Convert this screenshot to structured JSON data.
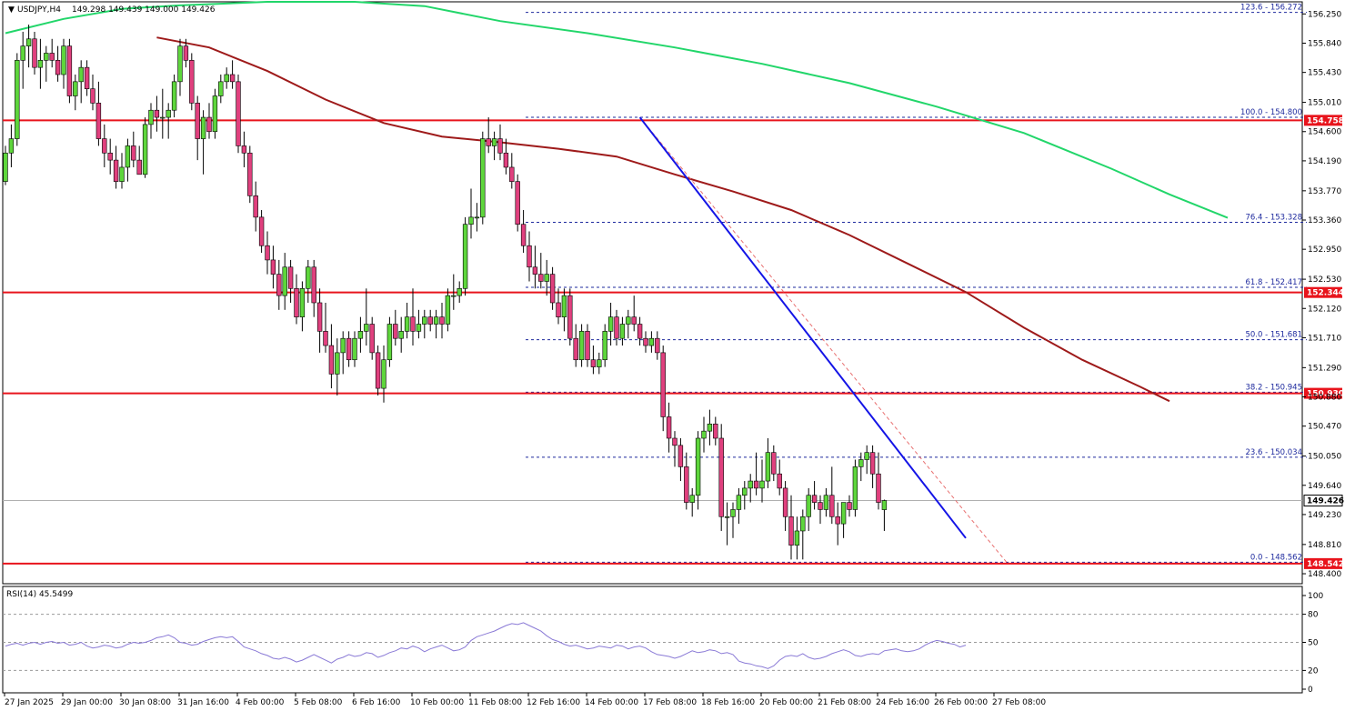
{
  "chart_data": {
    "type": "candlestick",
    "instrument_label": "USDJPY,H4",
    "ohlc_label": "149.298 149.439 149.000 149.426",
    "price_ticks": [
      "156.250",
      "155.840",
      "155.430",
      "155.010",
      "154.600",
      "154.190",
      "153.770",
      "153.360",
      "152.950",
      "152.530",
      "152.120",
      "151.710",
      "151.290",
      "150.880",
      "150.470",
      "150.050",
      "149.640",
      "149.230",
      "148.810",
      "148.400"
    ],
    "ylim": [
      148.26,
      156.42
    ],
    "x_labels": [
      "27 Jan 2025",
      "29 Jan 00:00",
      "30 Jan 08:00",
      "31 Jan 16:00",
      "4 Feb 00:00",
      "5 Feb 08:00",
      "6 Feb 16:00",
      "10 Feb 00:00",
      "11 Feb 08:00",
      "12 Feb 16:00",
      "14 Feb 00:00",
      "17 Feb 08:00",
      "18 Feb 16:00",
      "20 Feb 00:00",
      "21 Feb 08:00",
      "24 Feb 16:00",
      "26 Feb 00:00",
      "27 Feb 08:00"
    ],
    "horizontal_levels": [
      {
        "price": 154.758,
        "label": "154.758",
        "color": "#e8141c"
      },
      {
        "price": 152.344,
        "label": "152.344",
        "color": "#e8141c"
      },
      {
        "price": 150.93,
        "label": "150.930",
        "color": "#e8141c"
      },
      {
        "price": 148.542,
        "label": "148.542",
        "color": "#e8141c"
      }
    ],
    "fibonacci": [
      {
        "level": "123.6",
        "price": 156.272,
        "label": "123.6 - 156.272"
      },
      {
        "level": "100.0",
        "price": 154.8,
        "label": "100.0 - 154.800"
      },
      {
        "level": "76.4",
        "price": 153.328,
        "label": "76.4 - 153.328"
      },
      {
        "level": "61.8",
        "price": 152.417,
        "label": "61.8 - 152.417"
      },
      {
        "level": "50.0",
        "price": 151.681,
        "label": "50.0 - 151.681"
      },
      {
        "level": "38.2",
        "price": 150.945,
        "label": "38.2 - 150.945"
      },
      {
        "level": "23.6",
        "price": 150.034,
        "label": "23.6 - 150.034"
      },
      {
        "level": "0.0",
        "price": 148.562,
        "label": "0.0 - 148.562"
      }
    ],
    "current_price": {
      "price": 149.426,
      "label": "149.426"
    },
    "trendline": {
      "start_bar": 109,
      "start_price": 154.8,
      "end_bar": 165,
      "end_price": 148.9,
      "color": "#1414e6"
    },
    "fib_diagonal": {
      "start_bar": 109,
      "start_price": 154.8,
      "end_bar": 172,
      "end_price": 148.562,
      "color": "#e87070"
    },
    "sma_fast": {
      "color": "#9e1a1a",
      "points": [
        [
          26,
          155.92
        ],
        [
          35,
          155.78
        ],
        [
          45,
          155.45
        ],
        [
          55,
          155.05
        ],
        [
          65,
          154.72
        ],
        [
          75,
          154.53
        ],
        [
          85,
          154.45
        ],
        [
          95,
          154.36
        ],
        [
          105,
          154.25
        ],
        [
          115,
          154.0
        ],
        [
          125,
          153.76
        ],
        [
          135,
          153.5
        ],
        [
          145,
          153.15
        ],
        [
          155,
          152.75
        ],
        [
          165,
          152.35
        ],
        [
          175,
          151.85
        ],
        [
          185,
          151.4
        ],
        [
          195,
          151.02
        ],
        [
          200,
          150.82
        ]
      ]
    },
    "sma_slow": {
      "color": "#22d66a",
      "points": [
        [
          0,
          155.98
        ],
        [
          10,
          156.18
        ],
        [
          20,
          156.32
        ],
        [
          30,
          156.37
        ],
        [
          45,
          156.42
        ],
        [
          60,
          156.42
        ],
        [
          72,
          156.36
        ],
        [
          85,
          156.15
        ],
        [
          100,
          155.98
        ],
        [
          115,
          155.78
        ],
        [
          130,
          155.55
        ],
        [
          145,
          155.28
        ],
        [
          160,
          154.95
        ],
        [
          175,
          154.58
        ],
        [
          190,
          154.08
        ],
        [
          200,
          153.72
        ],
        [
          210,
          153.39
        ]
      ]
    },
    "candles": [
      [
        153.9,
        154.4,
        153.85,
        154.3
      ],
      [
        154.3,
        154.7,
        154.1,
        154.5
      ],
      [
        154.5,
        155.7,
        154.4,
        155.6
      ],
      [
        155.6,
        156.0,
        155.2,
        155.8
      ],
      [
        155.8,
        156.1,
        155.5,
        155.9
      ],
      [
        155.9,
        156.0,
        155.4,
        155.5
      ],
      [
        155.5,
        155.9,
        155.2,
        155.6
      ],
      [
        155.6,
        155.8,
        155.3,
        155.7
      ],
      [
        155.7,
        155.9,
        155.5,
        155.6
      ],
      [
        155.6,
        155.8,
        155.3,
        155.4
      ],
      [
        155.4,
        155.9,
        155.2,
        155.8
      ],
      [
        155.8,
        155.9,
        155.0,
        155.1
      ],
      [
        155.1,
        155.4,
        154.9,
        155.3
      ],
      [
        155.3,
        155.6,
        155.0,
        155.5
      ],
      [
        155.5,
        155.6,
        155.1,
        155.2
      ],
      [
        155.2,
        155.4,
        154.9,
        155.0
      ],
      [
        155.0,
        155.3,
        154.4,
        154.5
      ],
      [
        154.5,
        154.7,
        154.1,
        154.3
      ],
      [
        154.3,
        154.5,
        154.0,
        154.2
      ],
      [
        154.2,
        154.4,
        153.8,
        153.9
      ],
      [
        153.9,
        154.3,
        153.8,
        154.1
      ],
      [
        154.1,
        154.5,
        153.9,
        154.4
      ],
      [
        154.4,
        154.6,
        154.1,
        154.2
      ],
      [
        154.2,
        154.4,
        154.0,
        154.0
      ],
      [
        154.0,
        154.8,
        153.95,
        154.7
      ],
      [
        154.7,
        155.0,
        154.5,
        154.9
      ],
      [
        154.9,
        155.1,
        154.6,
        154.8
      ],
      [
        154.8,
        155.2,
        154.5,
        154.8
      ],
      [
        154.8,
        155.0,
        154.5,
        154.9
      ],
      [
        154.9,
        155.4,
        154.8,
        155.3
      ],
      [
        155.3,
        155.9,
        155.1,
        155.8
      ],
      [
        155.8,
        155.9,
        155.5,
        155.6
      ],
      [
        155.6,
        155.7,
        154.9,
        155.0
      ],
      [
        155.0,
        155.1,
        154.2,
        154.5
      ],
      [
        154.5,
        154.9,
        154.0,
        154.8
      ],
      [
        154.8,
        155.0,
        154.5,
        154.6
      ],
      [
        154.6,
        155.2,
        154.5,
        155.1
      ],
      [
        155.1,
        155.4,
        155.0,
        155.3
      ],
      [
        155.3,
        155.5,
        155.2,
        155.4
      ],
      [
        155.4,
        155.6,
        155.2,
        155.3
      ],
      [
        155.3,
        155.4,
        154.3,
        154.4
      ],
      [
        154.4,
        154.6,
        154.1,
        154.3
      ],
      [
        154.3,
        154.4,
        153.6,
        153.7
      ],
      [
        153.7,
        153.9,
        153.2,
        153.4
      ],
      [
        153.4,
        153.5,
        152.9,
        153.0
      ],
      [
        153.0,
        153.2,
        152.6,
        152.8
      ],
      [
        152.8,
        153.0,
        152.4,
        152.6
      ],
      [
        152.6,
        152.8,
        152.1,
        152.3
      ],
      [
        152.3,
        152.9,
        152.1,
        152.7
      ],
      [
        152.7,
        152.8,
        152.2,
        152.4
      ],
      [
        152.4,
        152.6,
        151.9,
        152.0
      ],
      [
        152.0,
        152.5,
        151.8,
        152.4
      ],
      [
        152.4,
        152.8,
        152.2,
        152.7
      ],
      [
        152.7,
        152.8,
        152.0,
        152.2
      ],
      [
        152.2,
        152.4,
        151.5,
        151.8
      ],
      [
        151.8,
        152.2,
        151.5,
        151.6
      ],
      [
        151.6,
        151.9,
        151.0,
        151.2
      ],
      [
        151.2,
        151.7,
        150.9,
        151.5
      ],
      [
        151.5,
        151.8,
        151.2,
        151.7
      ],
      [
        151.7,
        151.8,
        151.3,
        151.4
      ],
      [
        151.4,
        151.8,
        151.3,
        151.7
      ],
      [
        151.7,
        152.0,
        151.5,
        151.8
      ],
      [
        151.8,
        152.4,
        151.6,
        151.9
      ],
      [
        151.9,
        152.0,
        151.4,
        151.5
      ],
      [
        151.5,
        151.6,
        150.9,
        151.0
      ],
      [
        151.0,
        151.6,
        150.8,
        151.4
      ],
      [
        151.4,
        152.0,
        151.3,
        151.9
      ],
      [
        151.9,
        152.1,
        151.6,
        151.7
      ],
      [
        151.7,
        152.0,
        151.5,
        151.8
      ],
      [
        151.8,
        152.2,
        151.7,
        152.0
      ],
      [
        152.0,
        152.4,
        151.6,
        151.8
      ],
      [
        151.8,
        152.1,
        151.7,
        151.9
      ],
      [
        151.9,
        152.1,
        151.7,
        152.0
      ],
      [
        152.0,
        152.1,
        151.8,
        151.9
      ],
      [
        151.9,
        152.1,
        151.7,
        152.0
      ],
      [
        152.0,
        152.2,
        151.7,
        151.9
      ],
      [
        151.9,
        152.4,
        151.8,
        152.3
      ],
      [
        152.3,
        152.6,
        152.1,
        152.3
      ],
      [
        152.3,
        152.5,
        152.2,
        152.4
      ],
      [
        152.4,
        153.4,
        152.3,
        153.3
      ],
      [
        153.3,
        153.8,
        153.1,
        153.4
      ],
      [
        153.4,
        153.6,
        153.2,
        153.4
      ],
      [
        153.4,
        154.6,
        153.3,
        154.5
      ],
      [
        154.5,
        154.8,
        154.3,
        154.4
      ],
      [
        154.4,
        154.6,
        154.2,
        154.5
      ],
      [
        154.5,
        154.7,
        154.2,
        154.3
      ],
      [
        154.3,
        154.5,
        154.0,
        154.1
      ],
      [
        154.1,
        154.3,
        153.8,
        153.9
      ],
      [
        153.9,
        154.0,
        153.2,
        153.3
      ],
      [
        153.3,
        153.5,
        152.9,
        153.0
      ],
      [
        153.0,
        153.2,
        152.5,
        152.7
      ],
      [
        152.7,
        153.0,
        152.4,
        152.6
      ],
      [
        152.6,
        152.9,
        152.4,
        152.5
      ],
      [
        152.5,
        152.8,
        152.3,
        152.6
      ],
      [
        152.6,
        152.7,
        152.1,
        152.2
      ],
      [
        152.2,
        152.4,
        151.9,
        152.0
      ],
      [
        152.0,
        152.4,
        151.8,
        152.3
      ],
      [
        152.3,
        152.4,
        151.6,
        151.7
      ],
      [
        151.7,
        151.9,
        151.3,
        151.4
      ],
      [
        151.4,
        151.9,
        151.3,
        151.8
      ],
      [
        151.8,
        151.9,
        151.3,
        151.4
      ],
      [
        151.4,
        151.6,
        151.2,
        151.3
      ],
      [
        151.3,
        151.5,
        151.2,
        151.4
      ],
      [
        151.4,
        151.9,
        151.3,
        151.8
      ],
      [
        151.8,
        152.2,
        151.6,
        152.0
      ],
      [
        152.0,
        152.1,
        151.6,
        151.7
      ],
      [
        151.7,
        152.0,
        151.6,
        151.9
      ],
      [
        151.9,
        152.1,
        151.7,
        152.0
      ],
      [
        152.0,
        152.3,
        151.8,
        151.9
      ],
      [
        151.9,
        152.0,
        151.6,
        151.7
      ],
      [
        151.7,
        151.8,
        151.5,
        151.6
      ],
      [
        151.6,
        151.8,
        151.5,
        151.7
      ],
      [
        151.7,
        151.8,
        151.4,
        151.5
      ],
      [
        151.5,
        151.6,
        150.4,
        150.6
      ],
      [
        150.6,
        150.8,
        150.1,
        150.3
      ],
      [
        150.3,
        150.4,
        149.9,
        150.2
      ],
      [
        150.2,
        150.3,
        149.7,
        149.9
      ],
      [
        149.9,
        150.1,
        149.3,
        149.4
      ],
      [
        149.4,
        149.6,
        149.2,
        149.5
      ],
      [
        149.5,
        150.4,
        149.3,
        150.3
      ],
      [
        150.3,
        150.6,
        150.1,
        150.4
      ],
      [
        150.4,
        150.7,
        150.2,
        150.5
      ],
      [
        150.5,
        150.6,
        150.2,
        150.3
      ],
      [
        150.3,
        150.5,
        149.0,
        149.2
      ],
      [
        149.2,
        149.4,
        148.8,
        149.2
      ],
      [
        149.2,
        149.4,
        148.9,
        149.3
      ],
      [
        149.3,
        149.6,
        149.1,
        149.5
      ],
      [
        149.5,
        149.7,
        149.3,
        149.6
      ],
      [
        149.6,
        149.8,
        149.4,
        149.7
      ],
      [
        149.7,
        150.1,
        149.5,
        149.6
      ],
      [
        149.6,
        150.0,
        149.4,
        149.7
      ],
      [
        149.7,
        150.3,
        149.6,
        150.1
      ],
      [
        150.1,
        150.2,
        149.7,
        149.8
      ],
      [
        149.8,
        150.0,
        149.5,
        149.6
      ],
      [
        149.6,
        149.7,
        149.0,
        149.2
      ],
      [
        149.2,
        149.5,
        148.6,
        148.8
      ],
      [
        148.8,
        149.2,
        148.6,
        149.0
      ],
      [
        149.0,
        149.3,
        148.6,
        149.2
      ],
      [
        149.2,
        149.6,
        149.0,
        149.5
      ],
      [
        149.5,
        149.7,
        149.3,
        149.4
      ],
      [
        149.4,
        149.5,
        149.1,
        149.3
      ],
      [
        149.3,
        149.6,
        149.2,
        149.5
      ],
      [
        149.5,
        149.9,
        149.1,
        149.2
      ],
      [
        149.2,
        149.4,
        148.8,
        149.1
      ],
      [
        149.1,
        149.4,
        148.9,
        149.4
      ],
      [
        149.4,
        149.5,
        149.2,
        149.3
      ],
      [
        149.3,
        150.0,
        149.2,
        149.9
      ],
      [
        149.9,
        150.1,
        149.7,
        150.0
      ],
      [
        150.0,
        150.2,
        149.8,
        150.1
      ],
      [
        150.1,
        150.2,
        149.6,
        149.8
      ],
      [
        149.8,
        150.1,
        149.3,
        149.4
      ],
      [
        149.298,
        149.439,
        149.0,
        149.426
      ]
    ],
    "rsi": {
      "label": "RSI(14) 45.5499",
      "levels": [
        80,
        50,
        20
      ],
      "ticks": [
        "100",
        "80",
        "50",
        "20",
        "0"
      ],
      "ylim": [
        0,
        100
      ],
      "values": [
        46,
        48,
        49,
        47,
        49,
        50,
        48,
        50,
        51,
        49,
        50,
        47,
        48,
        50,
        46,
        44,
        45,
        47,
        46,
        44,
        45,
        48,
        50,
        49,
        50,
        52,
        55,
        56,
        58,
        55,
        50,
        49,
        47,
        48,
        51,
        53,
        55,
        56,
        55,
        56,
        51,
        45,
        43,
        41,
        38,
        36,
        33,
        32,
        34,
        32,
        29,
        31,
        34,
        37,
        34,
        31,
        28,
        32,
        34,
        37,
        35,
        36,
        39,
        38,
        34,
        36,
        39,
        41,
        44,
        43,
        46,
        44,
        40,
        43,
        45,
        47,
        44,
        41,
        42,
        45,
        52,
        56,
        58,
        60,
        62,
        65,
        68,
        70,
        69,
        71,
        68,
        65,
        62,
        57,
        53,
        51,
        48,
        46,
        47,
        45,
        43,
        44,
        46,
        45,
        44,
        47,
        46,
        43,
        45,
        46,
        44,
        40,
        37,
        36,
        35,
        33,
        35,
        38,
        41,
        39,
        40,
        42,
        41,
        38,
        39,
        37,
        30,
        28,
        27,
        25,
        24,
        22,
        25,
        31,
        35,
        36,
        35,
        38,
        34,
        32,
        33,
        35,
        38,
        40,
        42,
        40,
        36,
        35,
        37,
        38,
        37,
        41,
        42,
        43,
        41,
        40,
        41,
        43,
        47,
        50,
        52,
        51,
        49,
        48,
        45,
        47
      ]
    }
  }
}
